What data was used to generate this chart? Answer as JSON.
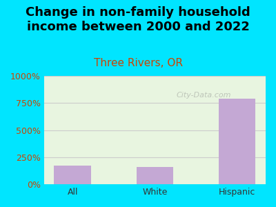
{
  "title": "Change in non-family household\nincome between 2000 and 2022",
  "subtitle": "Three Rivers, OR",
  "categories": [
    "All",
    "White",
    "Hispanic"
  ],
  "values": [
    175,
    160,
    790
  ],
  "bar_color": "#c4a8d4",
  "title_fontsize": 13,
  "subtitle_fontsize": 11,
  "subtitle_color": "#cc4400",
  "title_color": "#000000",
  "ylim": [
    0,
    1000
  ],
  "yticks": [
    0,
    250,
    500,
    750,
    1000
  ],
  "ytick_labels": [
    "0%",
    "250%",
    "500%",
    "750%",
    "1000%"
  ],
  "ytick_color": "#cc4400",
  "xtick_color": "#333333",
  "background_color": "#00e5ff",
  "plot_bg_top": "#e8f5e0",
  "plot_bg_bottom": "#f5faf0",
  "grid_color": "#cccccc",
  "watermark": "City-Data.com"
}
